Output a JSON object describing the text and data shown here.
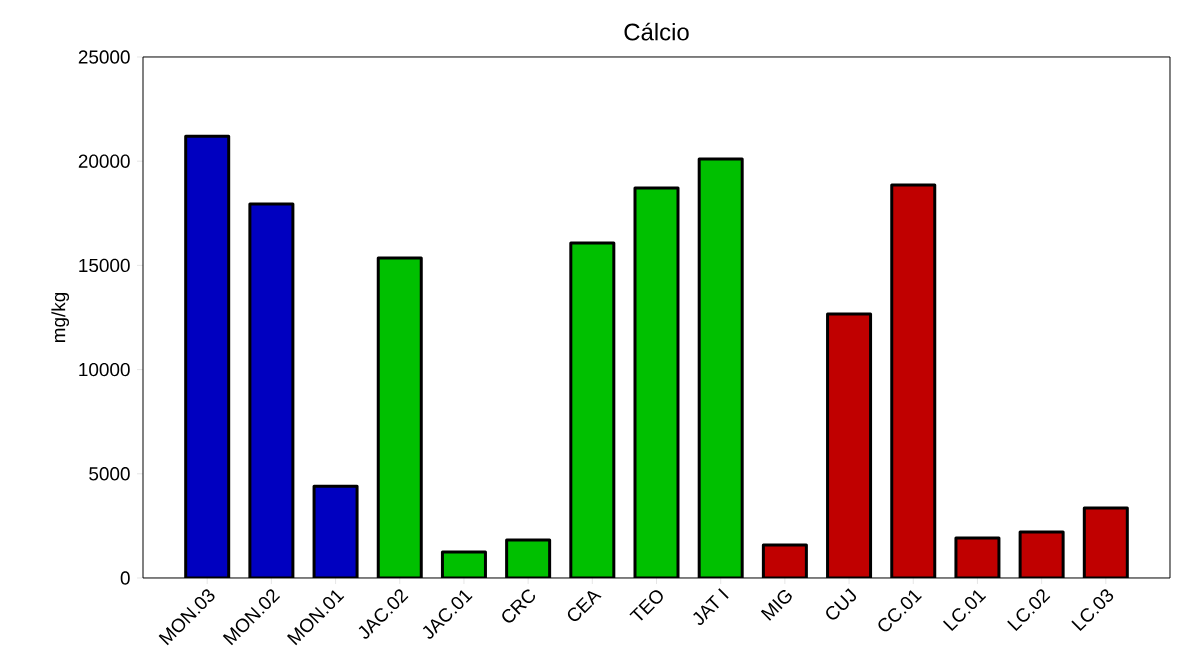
{
  "chart_data": {
    "type": "bar",
    "title": "Cálcio",
    "ylabel": "mg/kg",
    "categories": [
      "MON.03",
      "MON.02",
      "MON.01",
      "JAC.02",
      "JAC.01",
      "CRC",
      "CEA",
      "TEO",
      "JAT I",
      "MIG",
      "CUJ",
      "CC.01",
      "LC.01",
      "LC.02",
      "LC.03"
    ],
    "values": [
      21200,
      17950,
      4400,
      15350,
      1250,
      1820,
      16070,
      18710,
      20100,
      1580,
      12670,
      18860,
      1920,
      2210,
      3360
    ],
    "colors": [
      "#0000c0",
      "#0000c0",
      "#0000c0",
      "#00c000",
      "#00c000",
      "#00c000",
      "#00c000",
      "#00c000",
      "#00c000",
      "#c00000",
      "#c00000",
      "#c00000",
      "#c00000",
      "#c00000",
      "#c00000"
    ],
    "ylim": [
      0,
      25000
    ],
    "yticks": [
      0,
      5000,
      10000,
      15000,
      20000,
      25000
    ],
    "grid": false
  }
}
